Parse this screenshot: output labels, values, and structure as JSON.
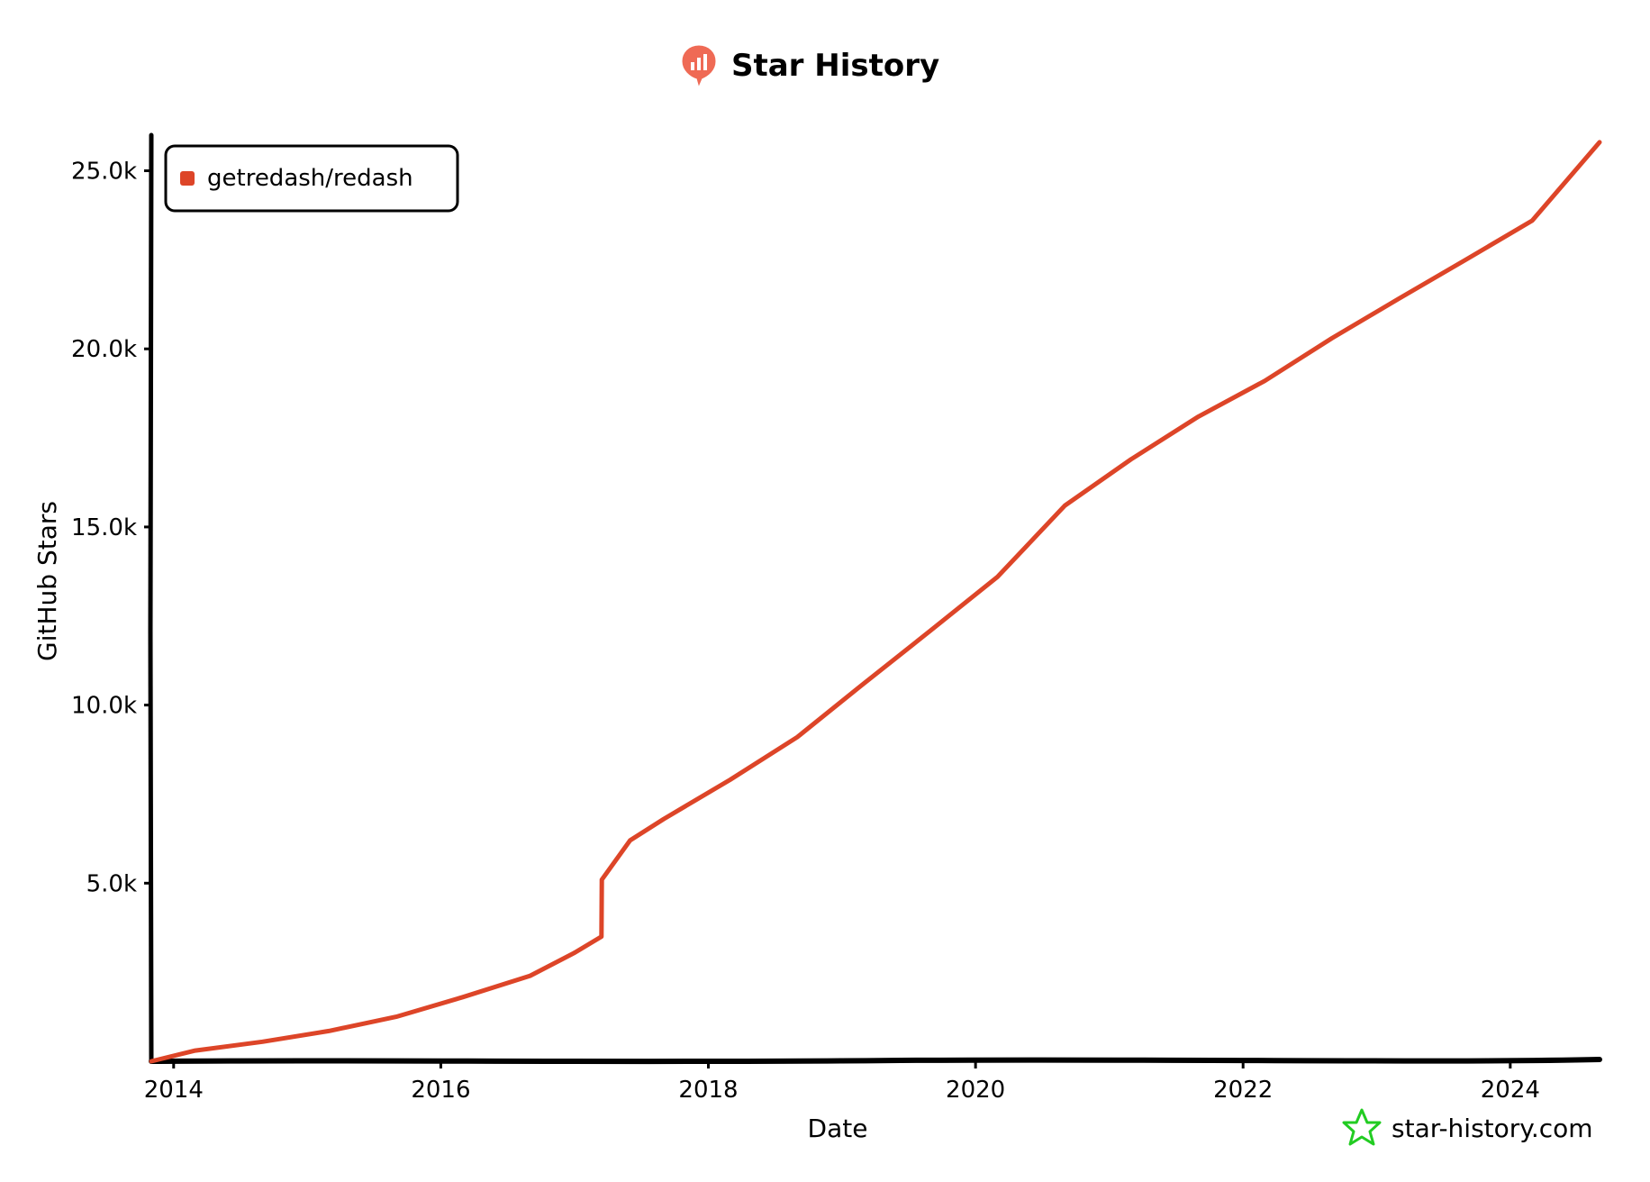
{
  "header": {
    "title": "Star History",
    "logo_icon": "star-history-logo-icon"
  },
  "watermark": {
    "text": "star-history.com",
    "icon": "star-icon",
    "color": "#22cc22"
  },
  "chart_data": {
    "type": "line",
    "title": "Star History",
    "xlabel": "Date",
    "ylabel": "GitHub Stars",
    "x_ticks": [
      "2014",
      "2016",
      "2018",
      "2020",
      "2022",
      "2024"
    ],
    "y_ticks": [
      "5.0k",
      "10.0k",
      "15.0k",
      "20.0k",
      "25.0k"
    ],
    "xlim": [
      "2013-11-01",
      "2024-09-01"
    ],
    "ylim": [
      0,
      26000
    ],
    "legend": "top-left",
    "grid": false,
    "series": [
      {
        "name": "getredash/redash",
        "color": "#dd4528",
        "x": [
          "2013-11-01",
          "2014-03-01",
          "2014-09-01",
          "2015-03-01",
          "2015-09-01",
          "2016-03-01",
          "2016-09-01",
          "2017-01-01",
          "2017-03-15",
          "2017-03-16",
          "2017-06-01",
          "2017-09-01",
          "2018-03-01",
          "2018-09-01",
          "2019-03-01",
          "2019-09-01",
          "2020-03-01",
          "2020-09-01",
          "2021-03-01",
          "2021-09-01",
          "2022-03-01",
          "2022-09-01",
          "2023-03-01",
          "2023-09-01",
          "2024-03-01",
          "2024-09-01"
        ],
        "y": [
          0,
          300,
          550,
          850,
          1250,
          1800,
          2400,
          3050,
          3500,
          5100,
          6200,
          6800,
          7900,
          9100,
          10600,
          12100,
          13600,
          15600,
          16900,
          18100,
          19100,
          20300,
          21400,
          22500,
          23600,
          25800
        ]
      }
    ]
  }
}
